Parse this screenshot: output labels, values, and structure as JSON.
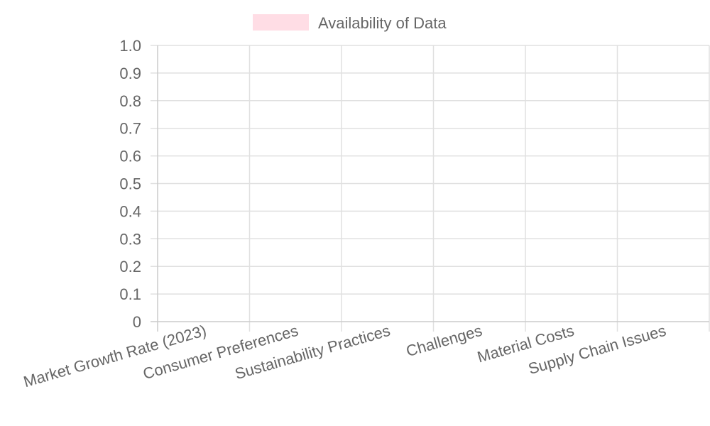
{
  "chart_data": {
    "type": "bar",
    "categories": [
      "Market Growth Rate (2023)",
      "Consumer Preferences",
      "Sustainability Practices",
      "Challenges",
      "Material Costs",
      "Supply Chain Issues"
    ],
    "series": [
      {
        "name": "Availability of Data",
        "values": [
          0,
          0,
          0,
          0,
          0,
          0
        ],
        "color": "#ffdde5"
      }
    ],
    "y_ticks": [
      "0",
      "0.1",
      "0.2",
      "0.3",
      "0.4",
      "0.5",
      "0.6",
      "0.7",
      "0.8",
      "0.9",
      "1.0"
    ],
    "ylim": [
      0,
      1
    ],
    "grid": true,
    "legend_position": "top-center",
    "colors": {
      "grid": "#e0e0e0",
      "axis": "#cccccc",
      "text": "#666666",
      "legend_swatch": "#ffdde5"
    }
  }
}
